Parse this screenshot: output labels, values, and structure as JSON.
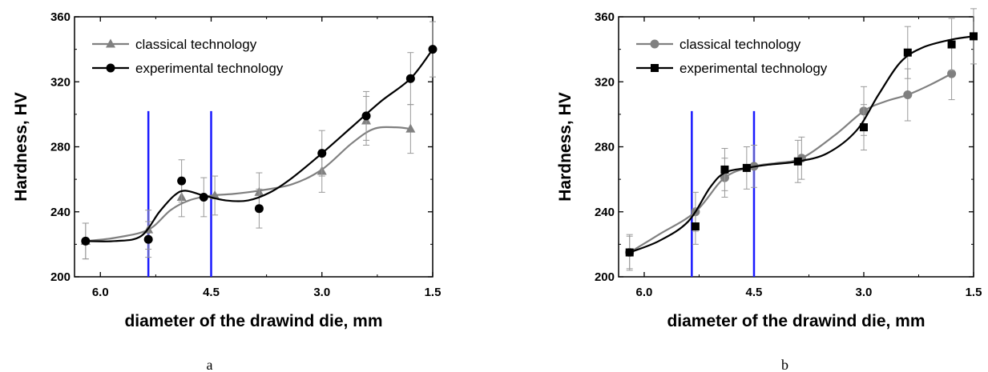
{
  "chart_data": [
    {
      "type": "line",
      "panel_label": "a",
      "xlabel": "diameter of the drawind die, mm",
      "ylabel": "Hardness, HV",
      "xlim": [
        6.35,
        1.5
      ],
      "ylim": [
        200,
        360
      ],
      "x_reversed": true,
      "x_ticks": [
        "6.0",
        "4.5",
        "3.0",
        "1.5"
      ],
      "x_tick_values": [
        6.0,
        4.5,
        3.0,
        1.5
      ],
      "y_ticks": [
        "200",
        "240",
        "280",
        "320",
        "360"
      ],
      "y_tick_values": [
        200,
        240,
        280,
        320,
        360
      ],
      "grid": false,
      "legend_position": "top-left",
      "vertical_lines": [
        5.35,
        4.5
      ],
      "series": [
        {
          "name": "classical technology",
          "marker": "triangle",
          "color": "#808080",
          "x": [
            6.2,
            5.35,
            4.9,
            4.45,
            3.85,
            3.0,
            2.4,
            1.8
          ],
          "y": [
            222,
            229,
            249,
            250,
            252,
            265,
            296,
            291
          ],
          "err": [
            11,
            12,
            12,
            12,
            12,
            13,
            15,
            15
          ],
          "curve": [
            [
              6.2,
              222
            ],
            [
              5.8,
              224
            ],
            [
              5.35,
              229
            ],
            [
              5.05,
              241
            ],
            [
              4.8,
              247
            ],
            [
              4.5,
              250
            ],
            [
              4.2,
              251
            ],
            [
              3.85,
              253
            ],
            [
              3.4,
              257
            ],
            [
              3.0,
              266
            ],
            [
              2.6,
              282
            ],
            [
              2.3,
              291
            ],
            [
              2.0,
              292
            ],
            [
              1.8,
              291
            ]
          ]
        },
        {
          "name": "experimental technology",
          "marker": "circle",
          "color": "#000000",
          "x": [
            6.2,
            5.35,
            4.9,
            4.6,
            3.85,
            3.0,
            2.4,
            1.8,
            1.5
          ],
          "y": [
            222,
            223,
            259,
            249,
            242,
            276,
            299,
            322,
            340
          ],
          "err": [
            11,
            11,
            13,
            12,
            12,
            14,
            15,
            16,
            17
          ],
          "curve": [
            [
              6.2,
              222
            ],
            [
              5.8,
              222
            ],
            [
              5.45,
              225
            ],
            [
              5.2,
              240
            ],
            [
              5.0,
              250
            ],
            [
              4.85,
              253
            ],
            [
              4.6,
              250
            ],
            [
              4.3,
              247
            ],
            [
              4.0,
              247
            ],
            [
              3.7,
              252
            ],
            [
              3.4,
              261
            ],
            [
              3.0,
              276
            ],
            [
              2.6,
              292
            ],
            [
              2.2,
              308
            ],
            [
              1.8,
              322
            ],
            [
              1.5,
              340
            ]
          ]
        }
      ]
    },
    {
      "type": "line",
      "panel_label": "b",
      "xlabel": "diameter of the drawind die, mm",
      "ylabel": "Hardness, HV",
      "xlim": [
        6.35,
        1.5
      ],
      "ylim": [
        200,
        360
      ],
      "x_reversed": true,
      "x_ticks": [
        "6.0",
        "4.5",
        "3.0",
        "1.5"
      ],
      "x_tick_values": [
        6.0,
        4.5,
        3.0,
        1.5
      ],
      "y_ticks": [
        "200",
        "240",
        "280",
        "320",
        "360"
      ],
      "y_tick_values": [
        200,
        240,
        280,
        320,
        360
      ],
      "grid": false,
      "legend_position": "top-left",
      "vertical_lines": [
        5.35,
        4.5
      ],
      "series": [
        {
          "name": "classical technology",
          "marker": "circle",
          "color": "#808080",
          "x": [
            6.2,
            5.3,
            4.9,
            4.5,
            3.85,
            3.0,
            2.4,
            1.8
          ],
          "y": [
            215,
            240,
            261,
            268,
            273,
            302,
            312,
            325
          ],
          "err": [
            11,
            12,
            12,
            13,
            13,
            15,
            16,
            16
          ],
          "curve": [
            [
              6.2,
              215
            ],
            [
              5.8,
              226
            ],
            [
              5.3,
              240
            ],
            [
              4.9,
              261
            ],
            [
              4.5,
              268
            ],
            [
              4.2,
              270
            ],
            [
              3.85,
              273
            ],
            [
              3.4,
              287
            ],
            [
              3.0,
              302
            ],
            [
              2.7,
              308
            ],
            [
              2.4,
              312
            ],
            [
              2.1,
              318
            ],
            [
              1.8,
              325
            ]
          ]
        },
        {
          "name": "experimental technology",
          "marker": "square",
          "color": "#000000",
          "x": [
            6.2,
            5.3,
            4.9,
            4.6,
            3.9,
            3.0,
            2.4,
            1.8,
            1.5
          ],
          "y": [
            215,
            231,
            266,
            267,
            271,
            292,
            338,
            343,
            348
          ],
          "err": [
            10,
            11,
            13,
            13,
            13,
            14,
            16,
            16,
            17
          ],
          "curve": [
            [
              6.2,
              215
            ],
            [
              5.8,
              222
            ],
            [
              5.4,
              234
            ],
            [
              5.1,
              255
            ],
            [
              4.9,
              264
            ],
            [
              4.6,
              267
            ],
            [
              4.3,
              269
            ],
            [
              3.9,
              271
            ],
            [
              3.5,
              276
            ],
            [
              3.1,
              290
            ],
            [
              2.8,
              312
            ],
            [
              2.5,
              332
            ],
            [
              2.2,
              341
            ],
            [
              1.8,
              346
            ],
            [
              1.5,
              348
            ]
          ]
        }
      ]
    }
  ]
}
